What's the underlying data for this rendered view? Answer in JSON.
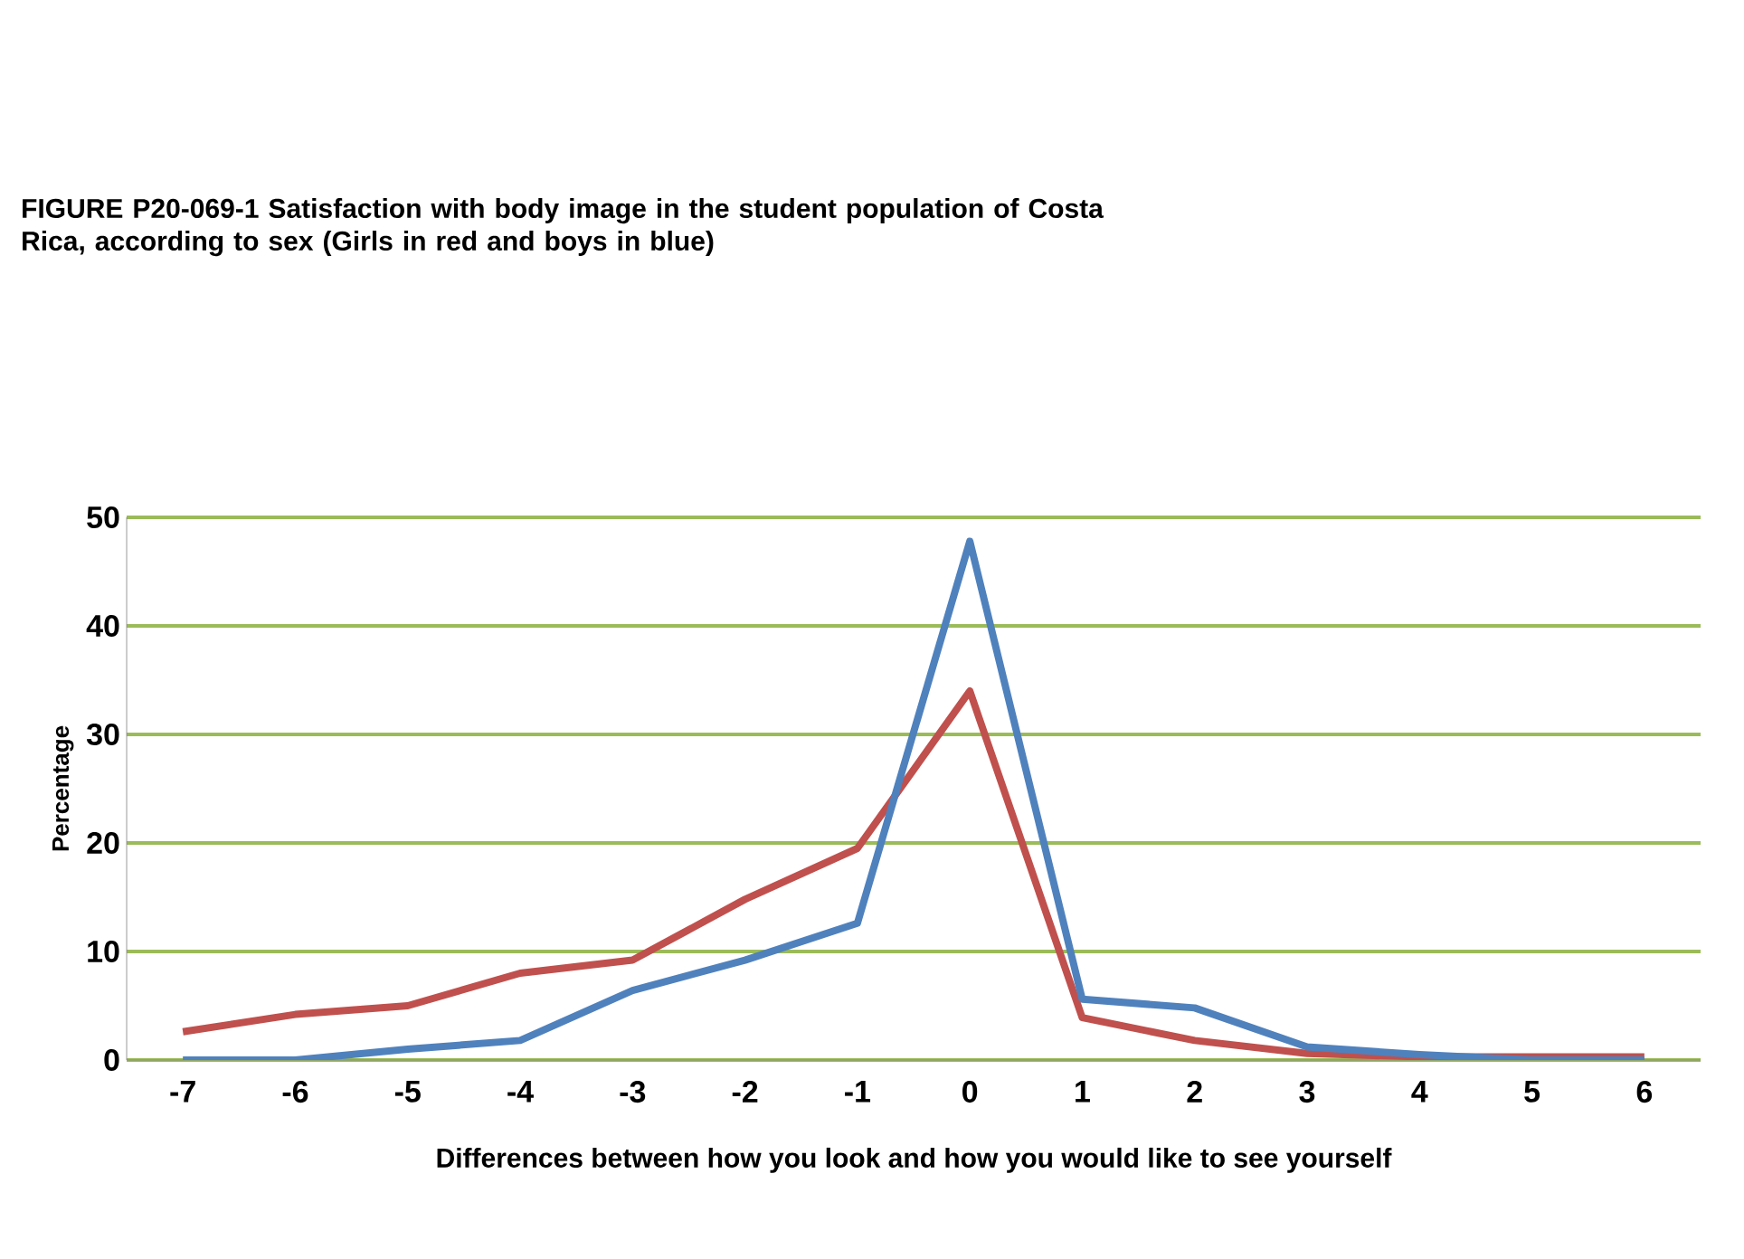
{
  "chart_data": {
    "type": "line",
    "title": "FIGURE P20-069-1 Satisfaction with body image in the student population of Costa Rica, according to sex (Girls in red and boys in blue)",
    "xlabel": "Differences between how you look and how you would like to see yourself",
    "ylabel": "Percentage",
    "categories": [
      "-7",
      "-6",
      "-5",
      "-4",
      "-3",
      "-2",
      "-1",
      "0",
      "1",
      "2",
      "3",
      "4",
      "5",
      "6"
    ],
    "series": [
      {
        "color": "#c0504d",
        "values": [
          2.6,
          4.2,
          5,
          8,
          9.2,
          14.8,
          19.5,
          34,
          3.9,
          1.8,
          0.6,
          0.3,
          0.3,
          0.3
        ]
      },
      {
        "color": "#4f81bd",
        "values": [
          0,
          0,
          1,
          1.8,
          6.4,
          9.2,
          12.6,
          47.8,
          5.6,
          4.8,
          1.2,
          0.5,
          0,
          0
        ]
      }
    ],
    "ylim": [
      0,
      50
    ],
    "yticks": [
      0,
      10,
      20,
      30,
      40,
      50
    ],
    "grid": "y",
    "marker": "none",
    "line_style": "solid"
  }
}
